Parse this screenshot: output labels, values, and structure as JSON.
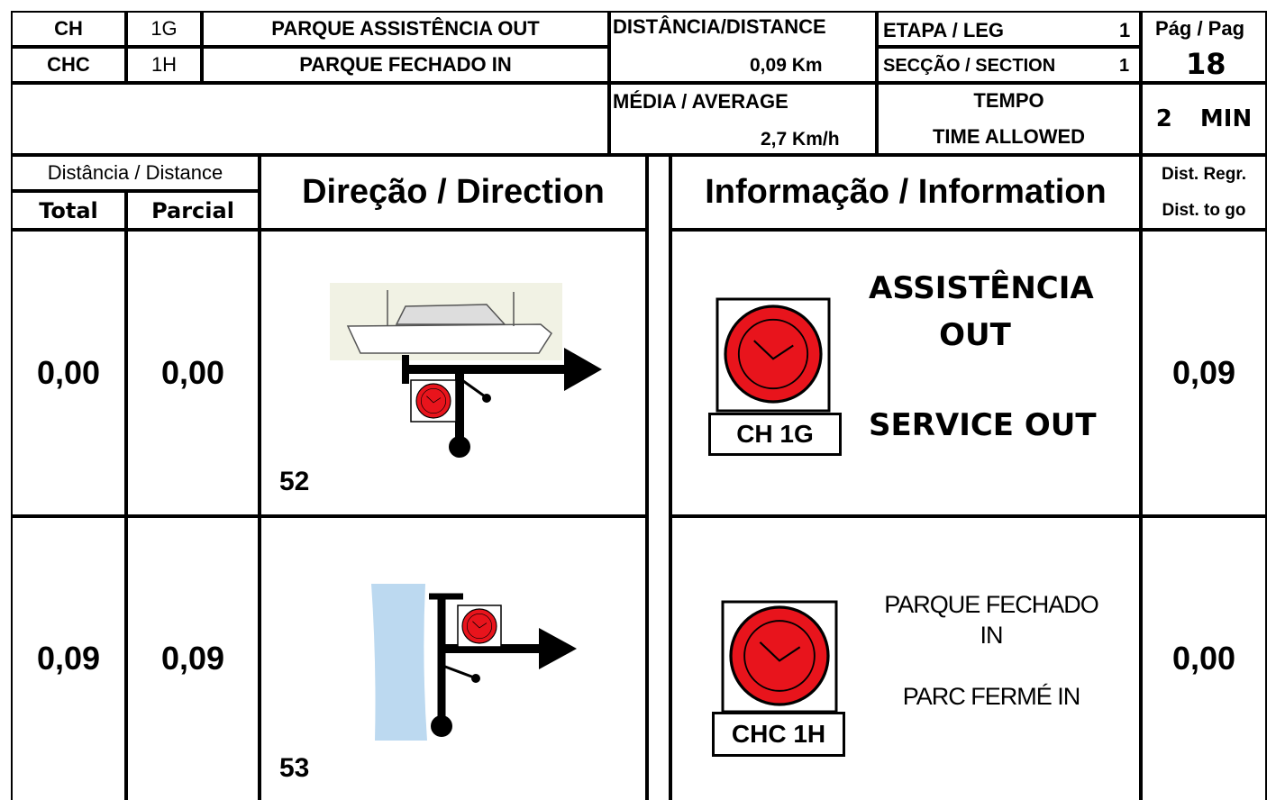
{
  "header": {
    "row1": [
      "CH",
      "1G",
      "PARQUE ASSISTÊNCIA OUT"
    ],
    "row2": [
      "CHC",
      "1H",
      "PARQUE FECHADO IN"
    ],
    "distance_label": "DISTÂNCIA/DISTANCE",
    "distance_value": "0,09 Km",
    "leg_label": "ETAPA / LEG",
    "leg": "1",
    "section_label": "SECÇÃO / SECTION",
    "section": "1",
    "page_label": "Pág / Pag",
    "page": "18",
    "average_label": "MÉDIA / AVERAGE",
    "average_value": "2,7 Km/h",
    "time_label": [
      "TEMPO",
      "TIME ALLOWED"
    ],
    "time_value": "2 MIN"
  },
  "columns": {
    "distance": "Distância / Distance",
    "total": "Total",
    "partial": "Parcial",
    "direction": "Direção / Direction",
    "information": "Informação / Information",
    "dist_regr": "Dist. Regr.",
    "dist_to_go": "Dist. to go"
  },
  "rows": [
    {
      "total": "0,00",
      "partial": "0,00",
      "number": "52",
      "box_label": "CH 1G",
      "info": [
        "ASSISTÊNCIA",
        "OUT",
        "SERVICE OUT"
      ],
      "to_go": "0,09"
    },
    {
      "total": "0,09",
      "partial": "0,09",
      "number": "53",
      "box_label": "CHC 1H",
      "info": [
        "PARQUE FECHADO",
        "IN",
        "PARC FERMÉ IN"
      ],
      "to_go": "0,00"
    }
  ]
}
